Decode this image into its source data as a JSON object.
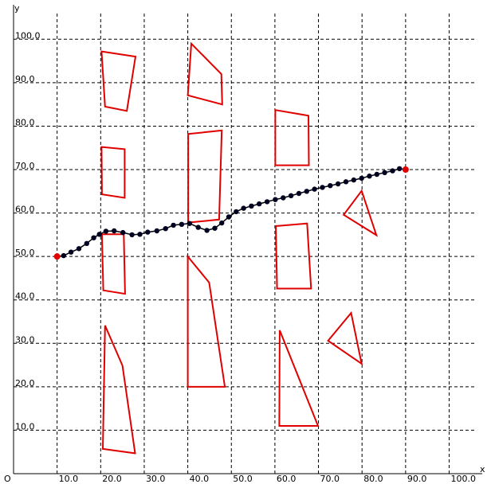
{
  "chart_data": {
    "type": "scatter",
    "title": "",
    "xlabel": "x",
    "ylabel": "y",
    "origin_label": "O",
    "xlim": [
      0,
      105
    ],
    "ylim": [
      0,
      105
    ],
    "x_ticks": [
      10,
      20,
      30,
      40,
      50,
      60,
      70,
      80,
      90,
      100
    ],
    "y_ticks": [
      10,
      20,
      30,
      40,
      50,
      60,
      70,
      80,
      90,
      100
    ],
    "x_tick_labels": [
      "10.0",
      "20.0",
      "30.0",
      "40.0",
      "50.0",
      "60.0",
      "70.0",
      "80.0",
      "90.0",
      "100.0"
    ],
    "y_tick_labels": [
      "10.0",
      "20.0",
      "30.0",
      "40.0",
      "50.0",
      "60.0",
      "70.0",
      "80.0",
      "90.0",
      "100.0"
    ],
    "grid": true,
    "colors": {
      "obstacle": "#e00000",
      "path": "#000000",
      "node": "#000020",
      "endpoint": "#e00000"
    },
    "obstacles": [
      [
        [
          20.2,
          97.2
        ],
        [
          28,
          96
        ],
        [
          26,
          83.5
        ],
        [
          21,
          84.5
        ]
      ],
      [
        [
          20.2,
          75.2
        ],
        [
          25.5,
          74.7
        ],
        [
          25.5,
          63.5
        ],
        [
          20.3,
          64.3
        ]
      ],
      [
        [
          20.3,
          55.1
        ],
        [
          25.3,
          55.1
        ],
        [
          25.6,
          41.4
        ],
        [
          20.6,
          42.2
        ]
      ],
      [
        [
          21,
          34.1
        ],
        [
          25,
          24.9
        ],
        [
          27.9,
          4.7
        ],
        [
          20.5,
          5.7
        ]
      ],
      [
        [
          40.8,
          99
        ],
        [
          47.7,
          92
        ],
        [
          47.9,
          85
        ],
        [
          40,
          87.1
        ]
      ],
      [
        [
          40.1,
          78.2
        ],
        [
          47.8,
          79
        ],
        [
          47.2,
          58.5
        ],
        [
          40.1,
          57.8
        ]
      ],
      [
        [
          40,
          50
        ],
        [
          44.9,
          44
        ],
        [
          48.5,
          20
        ],
        [
          40,
          20
        ]
      ],
      [
        [
          60.1,
          83.7
        ],
        [
          67.7,
          82.4
        ],
        [
          67.8,
          71
        ],
        [
          60.1,
          71
        ]
      ],
      [
        [
          60.2,
          57
        ],
        [
          67.4,
          57.6
        ],
        [
          68.3,
          42.6
        ],
        [
          60.5,
          42.6
        ]
      ],
      [
        [
          61.1,
          33
        ],
        [
          69.9,
          11
        ],
        [
          61,
          11
        ]
      ],
      [
        [
          75.8,
          59.6
        ],
        [
          79.9,
          65.1
        ],
        [
          83.3,
          54.9
        ]
      ],
      [
        [
          72.2,
          30.6
        ],
        [
          77.5,
          37
        ],
        [
          79.9,
          25.3
        ]
      ]
    ],
    "path_points": [
      [
        10,
        50
      ],
      [
        11.5,
        50.2
      ],
      [
        13.2,
        51
      ],
      [
        15,
        51.8
      ],
      [
        16.8,
        53
      ],
      [
        18.4,
        54.3
      ],
      [
        19.7,
        55.1
      ],
      [
        21.2,
        55.8
      ],
      [
        23.1,
        55.9
      ],
      [
        25.1,
        55.5
      ],
      [
        27.2,
        55
      ],
      [
        29,
        55.1
      ],
      [
        30.8,
        55.6
      ],
      [
        32.9,
        55.9
      ],
      [
        34.9,
        56.4
      ],
      [
        36.7,
        57.2
      ],
      [
        38.6,
        57.4
      ],
      [
        40.4,
        57.6
      ],
      [
        42.4,
        56.7
      ],
      [
        44.4,
        56
      ],
      [
        46.2,
        56.5
      ],
      [
        47.8,
        57.7
      ],
      [
        49.4,
        59.1
      ],
      [
        51.1,
        60.3
      ],
      [
        52.8,
        61.1
      ],
      [
        54.6,
        61.6
      ],
      [
        56.4,
        62.1
      ],
      [
        58.2,
        62.6
      ],
      [
        60.1,
        63.1
      ],
      [
        61.9,
        63.5
      ],
      [
        63.7,
        64
      ],
      [
        65.5,
        64.5
      ],
      [
        67.3,
        65
      ],
      [
        69.1,
        65.5
      ],
      [
        70.9,
        65.9
      ],
      [
        72.7,
        66.3
      ],
      [
        74.5,
        66.7
      ],
      [
        76.3,
        67.2
      ],
      [
        78.1,
        67.6
      ],
      [
        79.9,
        68
      ],
      [
        81.7,
        68.5
      ],
      [
        83.4,
        68.9
      ],
      [
        85.2,
        69.3
      ],
      [
        87,
        69.7
      ],
      [
        88.6,
        70.2
      ],
      [
        90,
        70
      ]
    ],
    "start": [
      10,
      50
    ],
    "goal": [
      90,
      70
    ]
  }
}
